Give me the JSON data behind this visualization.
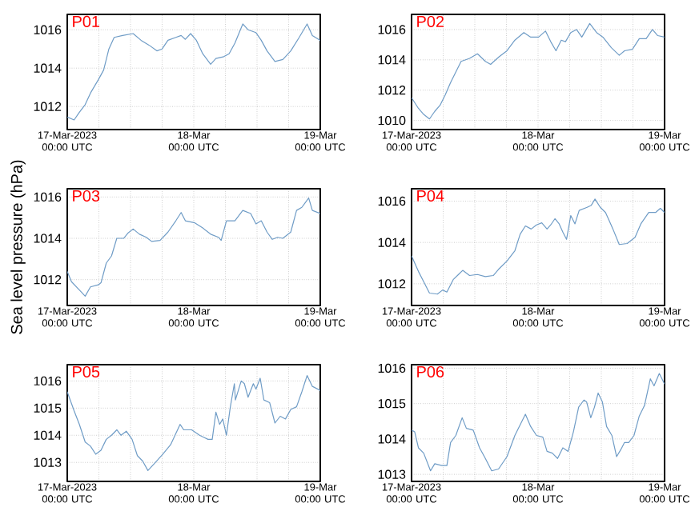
{
  "chart_data": [
    {
      "type": "line",
      "title": "P01",
      "color": "#6f9cc6",
      "grid": true,
      "xlim": [
        "2023-03-17T00:00",
        "2023-03-19T00:00"
      ],
      "ylim": [
        1010.8,
        1016.8
      ],
      "xticks": [
        {
          "value": "2023-03-17T00:00",
          "label": "17-Mar-2023 00:00 UTC"
        },
        {
          "value": "2023-03-17T06:00",
          "label": null
        },
        {
          "value": "2023-03-17T12:00",
          "label": null
        },
        {
          "value": "2023-03-17T18:00",
          "label": null
        },
        {
          "value": "2023-03-18T00:00",
          "label": "18-Mar 00:00 UTC"
        },
        {
          "value": "2023-03-18T06:00",
          "label": null
        },
        {
          "value": "2023-03-18T12:00",
          "label": null
        },
        {
          "value": "2023-03-18T18:00",
          "label": null
        },
        {
          "value": "2023-03-19T00:00",
          "label": "19-Mar 00:00 UTC"
        }
      ],
      "yticks": [
        1012,
        1014,
        1016
      ],
      "x": [
        "2023-03-17T00:00",
        "2023-03-17T01:18",
        "2023-03-17T02:18",
        "2023-03-17T03:24",
        "2023-03-17T04:24",
        "2023-03-17T05:54",
        "2023-03-17T06:54",
        "2023-03-17T07:54",
        "2023-03-17T08:54",
        "2023-03-17T10:30",
        "2023-03-17T12:30",
        "2023-03-17T14:00",
        "2023-03-17T15:30",
        "2023-03-17T17:00",
        "2023-03-17T18:00",
        "2023-03-17T19:06",
        "2023-03-17T20:36",
        "2023-03-17T21:36",
        "2023-03-17T22:24",
        "2023-03-17T23:24",
        "2023-03-18T00:30",
        "2023-03-18T01:42",
        "2023-03-18T03:12",
        "2023-03-18T04:12",
        "2023-03-18T05:42",
        "2023-03-18T06:42",
        "2023-03-18T07:48",
        "2023-03-18T09:18",
        "2023-03-18T10:18",
        "2023-03-18T11:48",
        "2023-03-18T12:48",
        "2023-03-18T13:54",
        "2023-03-18T15:24",
        "2023-03-18T16:54",
        "2023-03-18T18:24",
        "2023-03-18T20:00",
        "2023-03-18T21:30",
        "2023-03-18T22:30",
        "2023-03-19T00:00"
      ],
      "values": [
        1011.45,
        1011.3,
        1011.7,
        1012.1,
        1012.7,
        1013.4,
        1013.9,
        1015.0,
        1015.6,
        1015.7,
        1015.8,
        1015.45,
        1015.2,
        1014.9,
        1015.0,
        1015.45,
        1015.6,
        1015.7,
        1015.5,
        1015.8,
        1015.45,
        1014.75,
        1014.2,
        1014.5,
        1014.6,
        1014.75,
        1015.3,
        1016.3,
        1016.0,
        1015.85,
        1015.45,
        1014.9,
        1014.35,
        1014.45,
        1014.9,
        1015.6,
        1016.3,
        1015.7,
        1015.45
      ]
    },
    {
      "type": "line",
      "title": "P02",
      "color": "#6f9cc6",
      "grid": true,
      "xlim": [
        "2023-03-17T00:00",
        "2023-03-19T00:00"
      ],
      "ylim": [
        1009.4,
        1017.0
      ],
      "xticks": [
        {
          "value": "2023-03-17T00:00",
          "label": "17-Mar-2023 00:00 UTC"
        },
        {
          "value": "2023-03-17T06:00",
          "label": null
        },
        {
          "value": "2023-03-17T12:00",
          "label": null
        },
        {
          "value": "2023-03-17T18:00",
          "label": null
        },
        {
          "value": "2023-03-18T00:00",
          "label": "18-Mar 00:00 UTC"
        },
        {
          "value": "2023-03-18T06:00",
          "label": null
        },
        {
          "value": "2023-03-18T12:00",
          "label": null
        },
        {
          "value": "2023-03-18T18:00",
          "label": null
        },
        {
          "value": "2023-03-19T00:00",
          "label": "19-Mar 00:00 UTC"
        }
      ],
      "yticks": [
        1010,
        1012,
        1014,
        1016
      ],
      "x": [
        "2023-03-17T00:00",
        "2023-03-17T01:18",
        "2023-03-17T02:18",
        "2023-03-17T03:24",
        "2023-03-17T04:24",
        "2023-03-17T05:24",
        "2023-03-17T06:24",
        "2023-03-17T07:24",
        "2023-03-17T08:24",
        "2023-03-17T09:24",
        "2023-03-17T11:00",
        "2023-03-17T12:30",
        "2023-03-17T14:00",
        "2023-03-17T15:00",
        "2023-03-17T16:36",
        "2023-03-17T18:06",
        "2023-03-17T19:36",
        "2023-03-17T21:18",
        "2023-03-17T22:36",
        "2023-03-18T00:06",
        "2023-03-18T01:24",
        "2023-03-18T02:24",
        "2023-03-18T03:24",
        "2023-03-18T04:24",
        "2023-03-18T05:12",
        "2023-03-18T06:12",
        "2023-03-18T07:18",
        "2023-03-18T08:18",
        "2023-03-18T09:48",
        "2023-03-18T11:06",
        "2023-03-18T12:18",
        "2023-03-18T13:54",
        "2023-03-18T15:24",
        "2023-03-18T16:24",
        "2023-03-18T17:54",
        "2023-03-18T19:12",
        "2023-03-18T20:30",
        "2023-03-18T21:42",
        "2023-03-18T22:42",
        "2023-03-19T00:00"
      ],
      "values": [
        1011.5,
        1010.8,
        1010.4,
        1010.1,
        1010.6,
        1011.0,
        1011.7,
        1012.5,
        1013.2,
        1013.9,
        1014.1,
        1014.4,
        1013.9,
        1013.7,
        1014.2,
        1014.6,
        1015.3,
        1015.8,
        1015.5,
        1015.5,
        1015.9,
        1015.2,
        1014.6,
        1015.3,
        1015.2,
        1015.8,
        1016.0,
        1015.5,
        1016.4,
        1015.8,
        1015.5,
        1014.8,
        1014.3,
        1014.6,
        1014.7,
        1015.4,
        1015.4,
        1016.0,
        1015.6,
        1015.5
      ]
    },
    {
      "type": "line",
      "title": "P03",
      "ylabel": "Sea level pressure (hPa)",
      "color": "#6f9cc6",
      "grid": true,
      "xlim": [
        "2023-03-17T00:00",
        "2023-03-19T00:00"
      ],
      "ylim": [
        1010.75,
        1016.4
      ],
      "xticks": [
        {
          "value": "2023-03-17T00:00",
          "label": "17-Mar-2023 00:00 UTC"
        },
        {
          "value": "2023-03-17T06:00",
          "label": null
        },
        {
          "value": "2023-03-17T12:00",
          "label": null
        },
        {
          "value": "2023-03-17T18:00",
          "label": null
        },
        {
          "value": "2023-03-18T00:00",
          "label": "18-Mar 00:00 UTC"
        },
        {
          "value": "2023-03-18T06:00",
          "label": null
        },
        {
          "value": "2023-03-18T12:00",
          "label": null
        },
        {
          "value": "2023-03-18T18:00",
          "label": null
        },
        {
          "value": "2023-03-19T00:00",
          "label": "19-Mar 00:00 UTC"
        }
      ],
      "yticks": [
        1012,
        1014,
        1016
      ],
      "x": [
        "2023-03-17T00:00",
        "2023-03-17T00:48",
        "2023-03-17T02:18",
        "2023-03-17T03:24",
        "2023-03-17T04:24",
        "2023-03-17T05:54",
        "2023-03-17T06:24",
        "2023-03-17T07:24",
        "2023-03-17T08:24",
        "2023-03-17T09:24",
        "2023-03-17T10:42",
        "2023-03-17T11:30",
        "2023-03-17T12:30",
        "2023-03-17T13:42",
        "2023-03-17T15:00",
        "2023-03-17T16:00",
        "2023-03-17T17:36",
        "2023-03-17T19:06",
        "2023-03-17T20:36",
        "2023-03-17T21:36",
        "2023-03-17T22:24",
        "2023-03-18T00:12",
        "2023-03-18T01:42",
        "2023-03-18T03:12",
        "2023-03-18T04:42",
        "2023-03-18T05:12",
        "2023-03-18T06:12",
        "2023-03-18T07:48",
        "2023-03-18T09:18",
        "2023-03-18T10:48",
        "2023-03-18T11:48",
        "2023-03-18T12:48",
        "2023-03-18T13:54",
        "2023-03-18T14:54",
        "2023-03-18T15:54",
        "2023-03-18T16:54",
        "2023-03-18T18:24",
        "2023-03-18T19:30",
        "2023-03-18T20:30",
        "2023-03-18T21:48",
        "2023-03-18T22:30",
        "2023-03-19T00:00"
      ],
      "values": [
        1012.4,
        1011.9,
        1011.5,
        1011.2,
        1011.65,
        1011.75,
        1011.85,
        1012.8,
        1013.15,
        1014.0,
        1014.0,
        1014.25,
        1014.45,
        1014.2,
        1014.05,
        1013.85,
        1013.9,
        1014.3,
        1014.85,
        1015.25,
        1014.85,
        1014.75,
        1014.5,
        1014.2,
        1014.05,
        1013.9,
        1014.85,
        1014.85,
        1015.35,
        1015.2,
        1014.7,
        1014.85,
        1014.3,
        1013.95,
        1014.05,
        1014.0,
        1014.3,
        1015.35,
        1015.5,
        1015.95,
        1015.35,
        1015.2
      ]
    },
    {
      "type": "line",
      "title": "P04",
      "color": "#6f9cc6",
      "grid": true,
      "xlim": [
        "2023-03-17T00:00",
        "2023-03-19T00:00"
      ],
      "ylim": [
        1010.95,
        1016.6
      ],
      "xticks": [
        {
          "value": "2023-03-17T00:00",
          "label": "17-Mar-2023 00:00 UTC"
        },
        {
          "value": "2023-03-17T06:00",
          "label": null
        },
        {
          "value": "2023-03-17T12:00",
          "label": null
        },
        {
          "value": "2023-03-17T18:00",
          "label": null
        },
        {
          "value": "2023-03-18T00:00",
          "label": "18-Mar 00:00 UTC"
        },
        {
          "value": "2023-03-18T06:00",
          "label": null
        },
        {
          "value": "2023-03-18T12:00",
          "label": null
        },
        {
          "value": "2023-03-18T18:00",
          "label": null
        },
        {
          "value": "2023-03-19T00:00",
          "label": "19-Mar 00:00 UTC"
        }
      ],
      "yticks": [
        1012,
        1014,
        1016
      ],
      "x": [
        "2023-03-17T00:00",
        "2023-03-17T01:18",
        "2023-03-17T02:18",
        "2023-03-17T03:24",
        "2023-03-17T04:54",
        "2023-03-17T05:54",
        "2023-03-17T06:42",
        "2023-03-17T07:54",
        "2023-03-17T08:54",
        "2023-03-17T09:42",
        "2023-03-17T11:00",
        "2023-03-17T12:30",
        "2023-03-17T14:00",
        "2023-03-17T15:30",
        "2023-03-17T16:30",
        "2023-03-17T18:06",
        "2023-03-17T19:36",
        "2023-03-17T20:36",
        "2023-03-17T21:36",
        "2023-03-17T22:42",
        "2023-03-17T23:42",
        "2023-03-18T00:42",
        "2023-03-18T01:42",
        "2023-03-18T02:24",
        "2023-03-18T03:12",
        "2023-03-18T04:00",
        "2023-03-18T04:42",
        "2023-03-18T05:24",
        "2023-03-18T06:12",
        "2023-03-18T07:00",
        "2023-03-18T07:48",
        "2023-03-18T09:18",
        "2023-03-18T10:06",
        "2023-03-18T10:48",
        "2023-03-18T11:48",
        "2023-03-18T12:48",
        "2023-03-18T14:12",
        "2023-03-18T15:24",
        "2023-03-18T16:54",
        "2023-03-18T18:24",
        "2023-03-18T19:30",
        "2023-03-18T21:00",
        "2023-03-18T22:18",
        "2023-03-18T23:12",
        "2023-03-19T00:00"
      ],
      "values": [
        1013.35,
        1012.6,
        1012.1,
        1011.55,
        1011.5,
        1011.7,
        1011.6,
        1012.2,
        1012.45,
        1012.65,
        1012.4,
        1012.45,
        1012.35,
        1012.4,
        1012.7,
        1013.1,
        1013.6,
        1014.4,
        1014.8,
        1014.65,
        1014.85,
        1014.95,
        1014.65,
        1014.85,
        1015.15,
        1014.9,
        1014.5,
        1014.15,
        1015.3,
        1014.9,
        1015.55,
        1015.7,
        1015.8,
        1016.1,
        1015.7,
        1015.45,
        1014.65,
        1013.9,
        1013.95,
        1014.25,
        1014.9,
        1015.45,
        1015.45,
        1015.65,
        1015.45
      ]
    },
    {
      "type": "line",
      "title": "P05",
      "color": "#6f9cc6",
      "grid": true,
      "xlim": [
        "2023-03-17T00:00",
        "2023-03-19T00:00"
      ],
      "ylim": [
        1012.3,
        1016.6
      ],
      "xticks": [
        {
          "value": "2023-03-17T00:00",
          "label": "17-Mar-2023 00:00 UTC"
        },
        {
          "value": "2023-03-17T06:00",
          "label": null
        },
        {
          "value": "2023-03-17T12:00",
          "label": null
        },
        {
          "value": "2023-03-17T18:00",
          "label": null
        },
        {
          "value": "2023-03-18T00:00",
          "label": "18-Mar 00:00 UTC"
        },
        {
          "value": "2023-03-18T06:00",
          "label": null
        },
        {
          "value": "2023-03-18T12:00",
          "label": null
        },
        {
          "value": "2023-03-18T18:00",
          "label": null
        },
        {
          "value": "2023-03-19T00:00",
          "label": "19-Mar 00:00 UTC"
        }
      ],
      "yticks": [
        1013,
        1014,
        1015,
        1016
      ],
      "x": [
        "2023-03-17T00:00",
        "2023-03-17T01:18",
        "2023-03-17T02:18",
        "2023-03-17T03:24",
        "2023-03-17T04:24",
        "2023-03-17T05:24",
        "2023-03-17T06:24",
        "2023-03-17T07:24",
        "2023-03-17T08:24",
        "2023-03-17T09:24",
        "2023-03-17T10:12",
        "2023-03-17T11:12",
        "2023-03-17T12:18",
        "2023-03-17T13:18",
        "2023-03-17T14:18",
        "2023-03-17T15:18",
        "2023-03-17T16:30",
        "2023-03-17T18:06",
        "2023-03-17T19:36",
        "2023-03-17T21:24",
        "2023-03-17T22:06",
        "2023-03-17T23:36",
        "2023-03-18T01:06",
        "2023-03-18T02:42",
        "2023-03-18T03:30",
        "2023-03-18T04:12",
        "2023-03-18T04:54",
        "2023-03-18T05:30",
        "2023-03-18T06:12",
        "2023-03-18T06:54",
        "2023-03-18T07:42",
        "2023-03-18T07:54",
        "2023-03-18T09:00",
        "2023-03-18T09:36",
        "2023-03-18T10:18",
        "2023-03-18T11:18",
        "2023-03-18T11:48",
        "2023-03-18T12:36",
        "2023-03-18T13:18",
        "2023-03-18T14:24",
        "2023-03-18T15:24",
        "2023-03-18T16:24",
        "2023-03-18T17:24",
        "2023-03-18T18:24",
        "2023-03-18T19:30",
        "2023-03-18T20:30",
        "2023-03-18T21:30",
        "2023-03-18T22:30",
        "2023-03-19T00:00"
      ],
      "values": [
        1015.6,
        1014.9,
        1014.4,
        1013.75,
        1013.6,
        1013.3,
        1013.45,
        1013.85,
        1014.0,
        1014.2,
        1014.0,
        1014.15,
        1013.85,
        1013.25,
        1013.05,
        1012.7,
        1012.95,
        1013.3,
        1013.65,
        1014.4,
        1014.2,
        1014.2,
        1014.0,
        1013.85,
        1013.85,
        1014.85,
        1014.4,
        1014.6,
        1014.0,
        1015.0,
        1015.9,
        1015.3,
        1016.0,
        1015.9,
        1015.4,
        1015.9,
        1015.7,
        1016.1,
        1015.3,
        1015.2,
        1014.45,
        1014.7,
        1014.6,
        1014.95,
        1015.05,
        1015.6,
        1016.2,
        1015.8,
        1015.65
      ]
    },
    {
      "type": "line",
      "title": "P06",
      "color": "#6f9cc6",
      "grid": true,
      "xlim": [
        "2023-03-17T00:00",
        "2023-03-19T00:00"
      ],
      "ylim": [
        1012.8,
        1016.1
      ],
      "xticks": [
        {
          "value": "2023-03-17T00:00",
          "label": "17-Mar-2023 00:00 UTC"
        },
        {
          "value": "2023-03-17T06:00",
          "label": null
        },
        {
          "value": "2023-03-17T12:00",
          "label": null
        },
        {
          "value": "2023-03-17T18:00",
          "label": null
        },
        {
          "value": "2023-03-18T00:00",
          "label": "18-Mar 00:00 UTC"
        },
        {
          "value": "2023-03-18T06:00",
          "label": null
        },
        {
          "value": "2023-03-18T12:00",
          "label": null
        },
        {
          "value": "2023-03-18T18:00",
          "label": null
        },
        {
          "value": "2023-03-19T00:00",
          "label": "19-Mar 00:00 UTC"
        }
      ],
      "yticks": [
        1013,
        1014,
        1015,
        1016
      ],
      "x": [
        "2023-03-17T00:00",
        "2023-03-17T00:36",
        "2023-03-17T01:18",
        "2023-03-17T02:18",
        "2023-03-17T03:36",
        "2023-03-17T04:24",
        "2023-03-17T05:42",
        "2023-03-17T06:42",
        "2023-03-17T07:24",
        "2023-03-17T08:24",
        "2023-03-17T09:36",
        "2023-03-17T10:24",
        "2023-03-17T11:42",
        "2023-03-17T12:54",
        "2023-03-17T14:00",
        "2023-03-17T15:12",
        "2023-03-17T16:30",
        "2023-03-17T18:06",
        "2023-03-17T19:36",
        "2023-03-17T21:36",
        "2023-03-17T22:36",
        "2023-03-17T23:42",
        "2023-03-18T00:54",
        "2023-03-18T01:42",
        "2023-03-18T02:42",
        "2023-03-18T03:42",
        "2023-03-18T04:42",
        "2023-03-18T05:42",
        "2023-03-18T06:42",
        "2023-03-18T07:42",
        "2023-03-18T08:42",
        "2023-03-18T09:12",
        "2023-03-18T10:00",
        "2023-03-18T10:42",
        "2023-03-18T11:24",
        "2023-03-18T12:12",
        "2023-03-18T13:00",
        "2023-03-18T14:00",
        "2023-03-18T14:54",
        "2023-03-18T15:42",
        "2023-03-18T16:24",
        "2023-03-18T17:12",
        "2023-03-18T18:12",
        "2023-03-18T19:12",
        "2023-03-18T20:12",
        "2023-03-18T21:18",
        "2023-03-18T22:00",
        "2023-03-18T23:00",
        "2023-03-19T00:00"
      ],
      "values": [
        1014.25,
        1014.2,
        1013.75,
        1013.6,
        1013.1,
        1013.3,
        1013.25,
        1013.25,
        1013.9,
        1014.1,
        1014.6,
        1014.3,
        1014.25,
        1013.75,
        1013.45,
        1013.1,
        1013.15,
        1013.5,
        1014.1,
        1014.7,
        1014.35,
        1014.1,
        1014.05,
        1013.65,
        1013.6,
        1013.45,
        1013.75,
        1013.65,
        1014.2,
        1014.9,
        1015.1,
        1015.05,
        1014.6,
        1014.9,
        1015.3,
        1015.05,
        1014.35,
        1014.1,
        1013.5,
        1013.7,
        1013.9,
        1013.9,
        1014.1,
        1014.65,
        1014.95,
        1015.7,
        1015.5,
        1015.85,
        1015.55
      ]
    }
  ]
}
